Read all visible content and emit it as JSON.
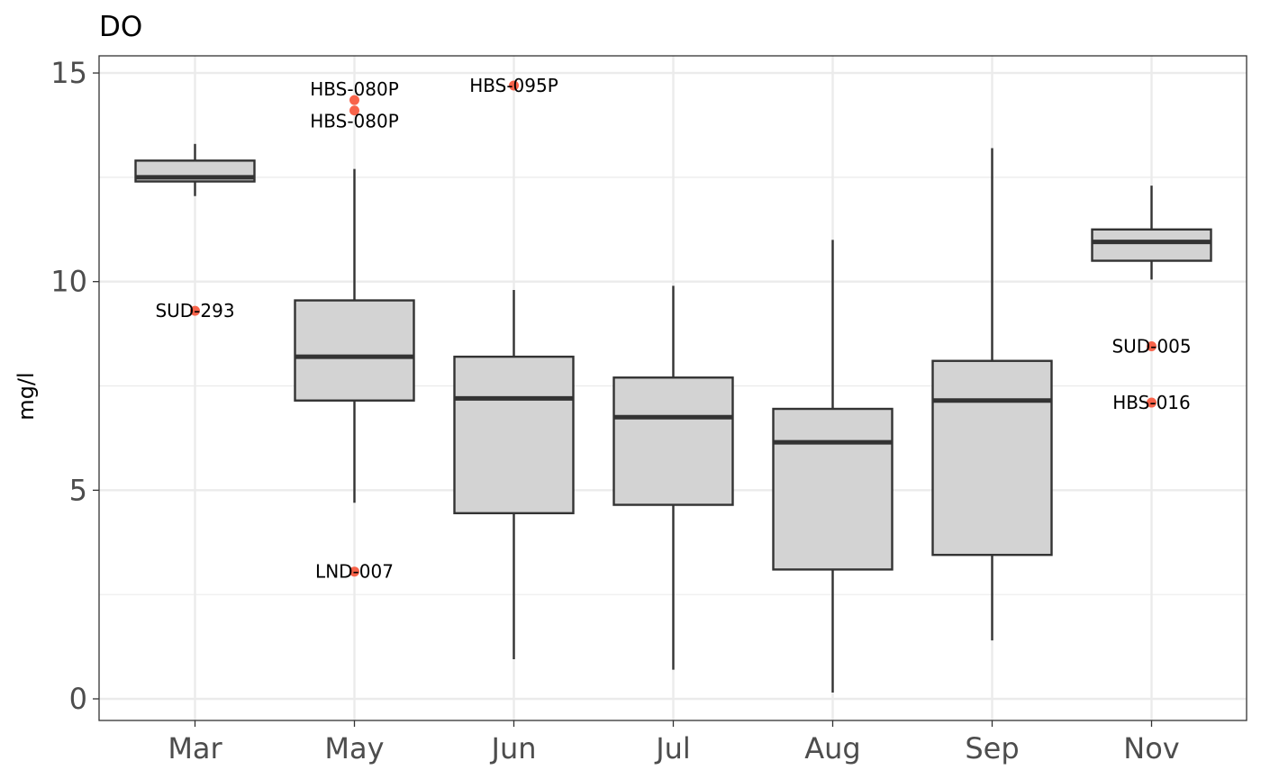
{
  "chart_data": {
    "type": "box",
    "title": "DO",
    "xlabel": "",
    "ylabel": "mg/l",
    "ylim": [
      -0.5,
      15.5
    ],
    "yticks": [
      0,
      5,
      10,
      15
    ],
    "ytick_labels": [
      "0",
      "5",
      "10",
      "15"
    ],
    "grid": true,
    "categories": [
      "Mar",
      "May",
      "Jun",
      "Jul",
      "Aug",
      "Sep",
      "Nov"
    ],
    "boxes": [
      {
        "category": "Mar",
        "lower_whisker": 12.05,
        "q1": 12.4,
        "median": 12.5,
        "q3": 12.9,
        "upper_whisker": 13.3
      },
      {
        "category": "May",
        "lower_whisker": 4.7,
        "q1": 7.15,
        "median": 8.2,
        "q3": 9.55,
        "upper_whisker": 12.7
      },
      {
        "category": "Jun",
        "lower_whisker": 0.95,
        "q1": 4.45,
        "median": 7.2,
        "q3": 8.2,
        "upper_whisker": 9.8
      },
      {
        "category": "Jul",
        "lower_whisker": 0.7,
        "q1": 4.65,
        "median": 6.75,
        "q3": 7.7,
        "upper_whisker": 9.9
      },
      {
        "category": "Aug",
        "lower_whisker": 0.15,
        "q1": 3.1,
        "median": 6.15,
        "q3": 6.95,
        "upper_whisker": 11.0
      },
      {
        "category": "Sep",
        "lower_whisker": 1.4,
        "q1": 3.45,
        "median": 7.15,
        "q3": 8.1,
        "upper_whisker": 13.2
      },
      {
        "category": "Nov",
        "lower_whisker": 10.05,
        "q1": 10.5,
        "median": 10.95,
        "q3": 11.25,
        "upper_whisker": 12.3
      }
    ],
    "outliers": [
      {
        "category": "Mar",
        "value": 9.3,
        "label": "SUD-293"
      },
      {
        "category": "May",
        "value": 14.35,
        "label": "HBS-080P"
      },
      {
        "category": "May",
        "value": 14.1,
        "label": "HBS-080P"
      },
      {
        "category": "May",
        "value": 3.05,
        "label": "LND-007"
      },
      {
        "category": "Jun",
        "value": 14.7,
        "label": "HBS-095P"
      },
      {
        "category": "Nov",
        "value": 8.45,
        "label": "SUD-005"
      },
      {
        "category": "Nov",
        "value": 7.1,
        "label": "HBS-016"
      }
    ],
    "colors": {
      "box_fill": "#d3d3d3",
      "box_stroke": "#333333",
      "outlier": "#f8634a",
      "grid": "#ebebeb",
      "panel_border": "#333333"
    }
  }
}
